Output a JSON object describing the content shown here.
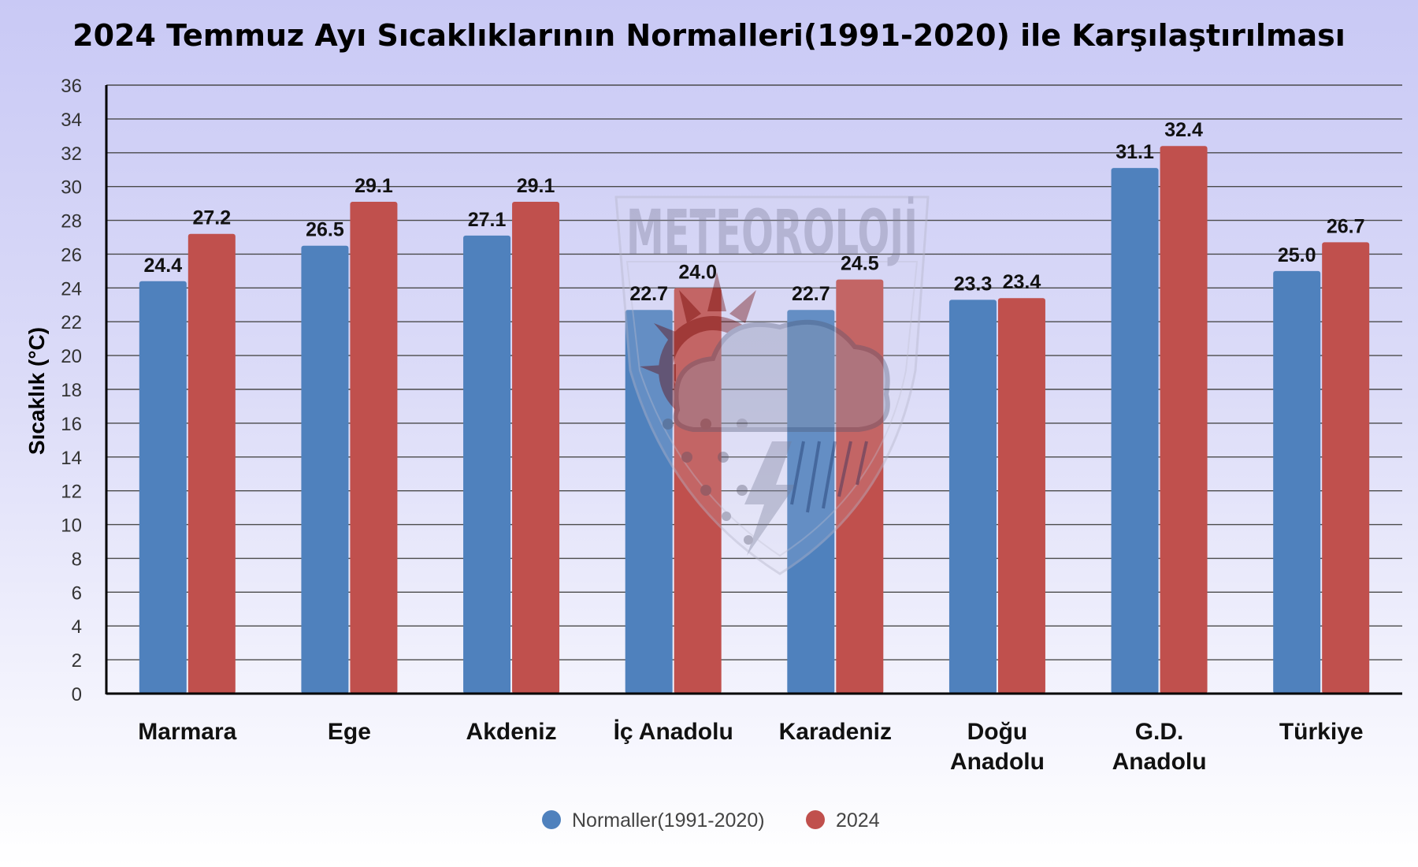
{
  "chart_data": {
    "type": "bar",
    "title": "2024 Temmuz Ayı Sıcaklıklarının Normalleri(1991-2020) ile Karşılaştırılması",
    "xlabel": "",
    "ylabel": "Sıcaklık (°C)",
    "ylim": [
      0,
      36
    ],
    "yticks": [
      0,
      2,
      4,
      6,
      8,
      10,
      12,
      14,
      16,
      18,
      20,
      22,
      24,
      26,
      28,
      30,
      32,
      34,
      36
    ],
    "grid": true,
    "legend_position": "bottom",
    "categories": [
      [
        "Marmara"
      ],
      [
        "Ege"
      ],
      [
        "Akdeniz"
      ],
      [
        "İç Anadolu"
      ],
      [
        "Karadeniz"
      ],
      [
        "Doğu",
        "Anadolu"
      ],
      [
        "G.D.",
        "Anadolu"
      ],
      [
        "Türkiye"
      ]
    ],
    "series": [
      {
        "name": "Normaller(1991-2020)",
        "color": "#4f81bd",
        "values": [
          24.4,
          26.5,
          27.1,
          22.7,
          22.7,
          23.3,
          31.1,
          25.0
        ],
        "labels": [
          "24.4",
          "26.5",
          "27.1",
          "22.7",
          "22.7",
          "23.3",
          "31.1",
          "25.0"
        ]
      },
      {
        "name": "2024",
        "color": "#c0504d",
        "values": [
          27.2,
          29.1,
          29.1,
          24.0,
          24.5,
          23.4,
          32.4,
          26.7
        ],
        "labels": [
          "27.2",
          "29.1",
          "29.1",
          "24.0",
          "24.5",
          "23.4",
          "32.4",
          "26.7"
        ]
      }
    ]
  },
  "watermark": {
    "text": "METEOROLOJİ"
  }
}
